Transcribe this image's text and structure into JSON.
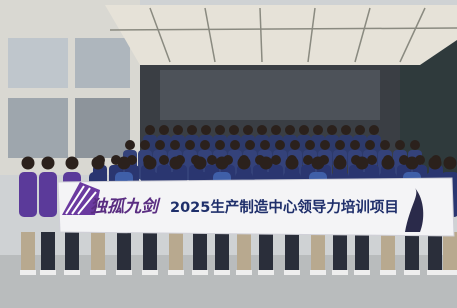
{
  "banner": {
    "logo_text": "独孤九剑",
    "title": "2025生产制造中心领导力培训项目"
  }
}
